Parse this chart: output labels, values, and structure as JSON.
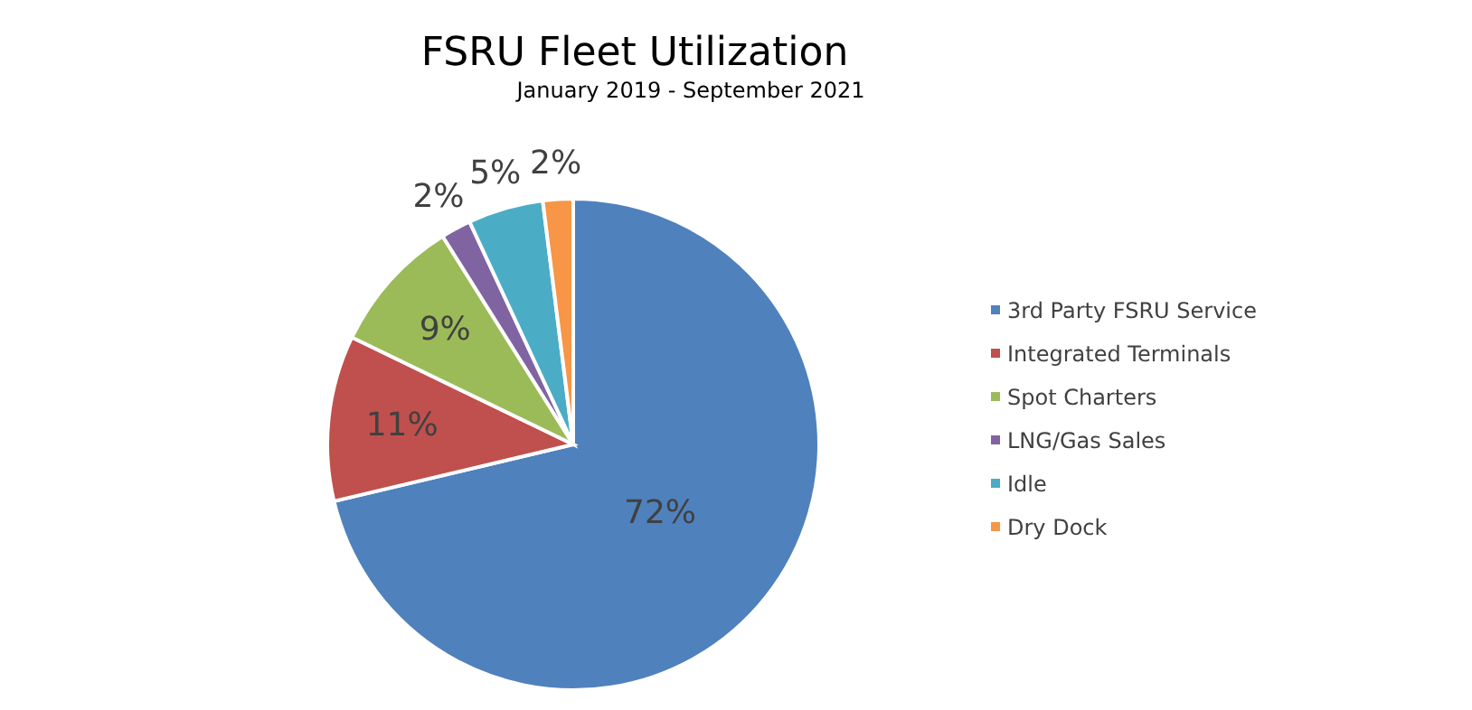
{
  "chart_data": {
    "type": "pie",
    "title": "FSRU Fleet Utilization",
    "subtitle": "January 2019 - September 2021",
    "categories": [
      "3rd Party FSRU Service",
      "Integrated Terminals",
      "Spot Charters",
      "LNG/Gas Sales",
      "Idle",
      "Dry Dock"
    ],
    "values": [
      72,
      11,
      9,
      2,
      5,
      2
    ],
    "colors": [
      "#4f81bd",
      "#c0504d",
      "#9bbb59",
      "#8064a2",
      "#4bacc6",
      "#f79646"
    ],
    "value_labels": [
      "72%",
      "11%",
      "9%",
      "2%",
      "5%",
      "2%"
    ],
    "legend": "right"
  }
}
